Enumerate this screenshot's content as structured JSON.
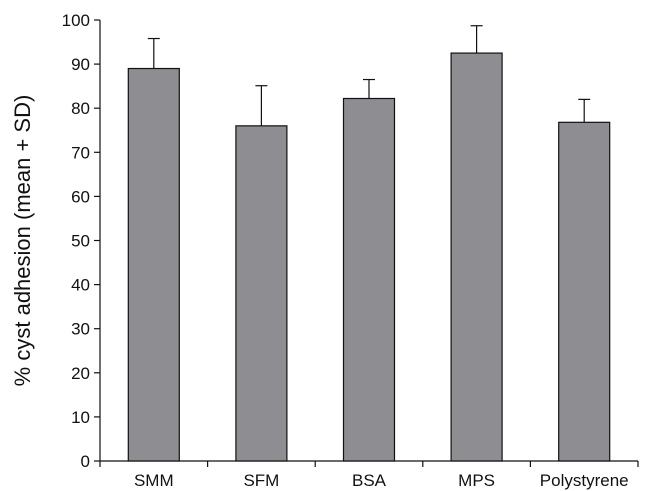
{
  "chart_data": {
    "type": "bar",
    "title": "",
    "xlabel": "",
    "ylabel": "% cyst adhesion (mean + SD)",
    "ylim": [
      0,
      100
    ],
    "yticks": [
      0,
      10,
      20,
      30,
      40,
      50,
      60,
      70,
      80,
      90,
      100
    ],
    "categories": [
      "SMM",
      "SFM",
      "BSA",
      "MPS",
      "Polystyrene"
    ],
    "values": [
      89,
      76,
      82.2,
      92.5,
      76.8
    ],
    "error_plus": [
      6.8,
      9.1,
      4.3,
      6.2,
      5.2
    ],
    "bar_color": "#8e8e92",
    "grid": false,
    "legend": "none"
  }
}
